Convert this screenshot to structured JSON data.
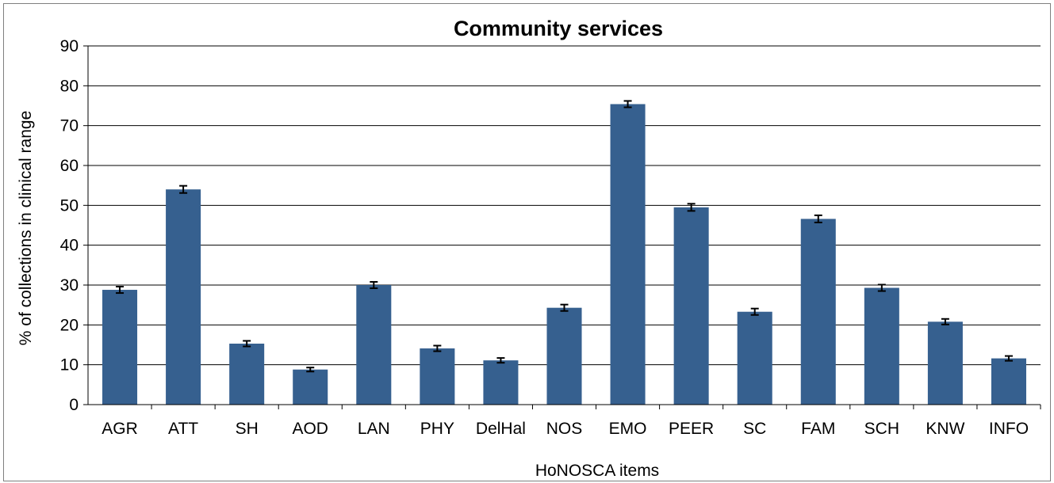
{
  "chart_data": {
    "type": "bar",
    "title": "Community services",
    "xlabel": "HoNOSCA items",
    "ylabel": "% of collections in clinical range",
    "ylim": [
      0,
      90
    ],
    "yticks": [
      0,
      10,
      20,
      30,
      40,
      50,
      60,
      70,
      80,
      90
    ],
    "grid": true,
    "legend": "none",
    "categories": [
      "AGR",
      "ATT",
      "SH",
      "AOD",
      "LAN",
      "PHY",
      "DelHal",
      "NOS",
      "EMO",
      "PEER",
      "SC",
      "FAM",
      "SCH",
      "KNW",
      "INFO"
    ],
    "values": [
      28.8,
      54.0,
      15.3,
      8.8,
      30.0,
      14.1,
      11.1,
      24.3,
      75.4,
      49.5,
      23.3,
      46.6,
      29.3,
      20.8,
      11.6
    ],
    "error": [
      0.8,
      0.9,
      0.7,
      0.5,
      0.8,
      0.7,
      0.6,
      0.8,
      0.8,
      0.9,
      0.8,
      0.9,
      0.8,
      0.7,
      0.6
    ],
    "bar_color": "#36608f"
  }
}
